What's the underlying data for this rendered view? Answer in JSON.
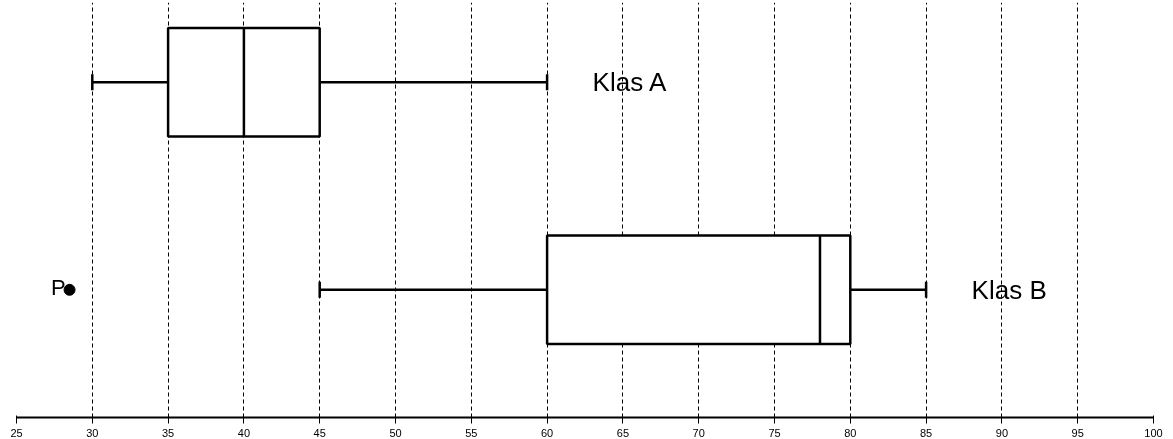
{
  "chart_data": {
    "type": "box",
    "orientation": "horizontal",
    "categories": [
      "Klas A",
      "Klas B"
    ],
    "boxes": [
      {
        "low": 30,
        "q1": 35,
        "median": 40,
        "q3": 45,
        "high": 60
      },
      {
        "low": 45,
        "q1": 60,
        "median": 78,
        "q3": 80,
        "high": 85
      }
    ],
    "series": [
      {
        "type": "scatter",
        "name": "P",
        "x": [
          "Klas B"
        ],
        "values": [
          28.5
        ],
        "color": "#000000"
      }
    ],
    "xlim": [
      25,
      100
    ],
    "xticks": [
      25,
      30,
      35,
      40,
      45,
      50,
      55,
      60,
      65,
      70,
      75,
      80,
      85,
      90,
      95,
      100
    ],
    "grid": "x",
    "tick_labels": "x",
    "color": "#000000",
    "marker": "circle"
  }
}
